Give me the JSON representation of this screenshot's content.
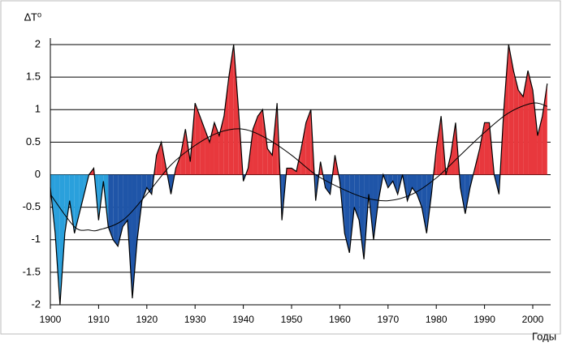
{
  "chart_data": {
    "type": "area",
    "y_label": "∆T⁰",
    "x_label": "Годы",
    "x": [
      1900,
      1901,
      1902,
      1903,
      1904,
      1905,
      1906,
      1907,
      1908,
      1909,
      1910,
      1911,
      1912,
      1913,
      1914,
      1915,
      1916,
      1917,
      1918,
      1919,
      1920,
      1921,
      1922,
      1923,
      1924,
      1925,
      1926,
      1927,
      1928,
      1929,
      1930,
      1931,
      1932,
      1933,
      1934,
      1935,
      1936,
      1937,
      1938,
      1939,
      1940,
      1941,
      1942,
      1943,
      1944,
      1945,
      1946,
      1947,
      1948,
      1949,
      1950,
      1951,
      1952,
      1953,
      1954,
      1955,
      1956,
      1957,
      1958,
      1959,
      1960,
      1961,
      1962,
      1963,
      1964,
      1965,
      1966,
      1967,
      1968,
      1969,
      1970,
      1971,
      1972,
      1973,
      1974,
      1975,
      1976,
      1977,
      1978,
      1979,
      1980,
      1981,
      1982,
      1983,
      1984,
      1985,
      1986,
      1987,
      1988,
      1989,
      1990,
      1991,
      1992,
      1993,
      1994,
      1995,
      1996,
      1997,
      1998,
      1999,
      2000,
      2001,
      2002,
      2003
    ],
    "values": [
      -0.2,
      -0.9,
      -2.0,
      -0.9,
      -0.4,
      -0.9,
      -0.6,
      -0.3,
      0.0,
      0.1,
      -0.7,
      -0.1,
      -0.8,
      -1.0,
      -1.1,
      -0.8,
      -0.7,
      -1.9,
      -1.0,
      -0.4,
      -0.2,
      -0.3,
      0.3,
      0.5,
      0.1,
      -0.3,
      0.1,
      0.3,
      0.7,
      0.2,
      1.1,
      0.9,
      0.7,
      0.5,
      0.8,
      0.6,
      0.9,
      1.5,
      2.0,
      1.0,
      -0.1,
      0.1,
      0.7,
      0.9,
      1.0,
      0.4,
      0.3,
      1.1,
      -0.7,
      0.1,
      0.1,
      0.05,
      0.4,
      0.8,
      1.0,
      -0.4,
      0.2,
      -0.2,
      -0.3,
      0.3,
      -0.1,
      -0.9,
      -1.2,
      -0.5,
      -0.7,
      -1.3,
      -0.3,
      -1.0,
      -0.4,
      0.0,
      -0.2,
      -0.1,
      -0.3,
      0.0,
      -0.4,
      -0.2,
      -0.3,
      -0.5,
      -0.9,
      -0.3,
      0.4,
      0.9,
      0.0,
      0.3,
      0.8,
      -0.2,
      -0.6,
      -0.2,
      0.1,
      0.4,
      0.8,
      0.8,
      0.0,
      -0.3,
      1.0,
      2.0,
      1.6,
      1.3,
      1.2,
      1.6,
      1.3,
      0.6,
      0.9,
      1.4
    ],
    "positive_color": "#e8383d",
    "negative_color": "#1f55a8",
    "early_negative": {
      "until": 1911,
      "color": "#2aa0dc"
    },
    "trend": {
      "x": [
        1900,
        1905,
        1908,
        1910,
        1915,
        1920,
        1925,
        1930,
        1935,
        1940,
        1945,
        1950,
        1955,
        1960,
        1965,
        1970,
        1975,
        1980,
        1985,
        1990,
        1995,
        2000,
        2003
      ],
      "values": [
        -0.3,
        -0.8,
        -0.85,
        -0.85,
        -0.7,
        -0.3,
        0.15,
        0.45,
        0.65,
        0.7,
        0.55,
        0.3,
        0.0,
        -0.2,
        -0.35,
        -0.4,
        -0.3,
        -0.05,
        0.3,
        0.65,
        0.95,
        1.1,
        1.05
      ],
      "color": "#000000"
    },
    "xlim": [
      1900,
      2003.7
    ],
    "xticks": [
      1900,
      1910,
      1920,
      1930,
      1940,
      1950,
      1960,
      1970,
      1980,
      1990,
      2000
    ],
    "ylim": [
      -2,
      2
    ],
    "yticks": [
      -2,
      -1.5,
      -1,
      -0.5,
      0,
      0.5,
      1,
      1.5,
      2
    ],
    "grid": true
  }
}
